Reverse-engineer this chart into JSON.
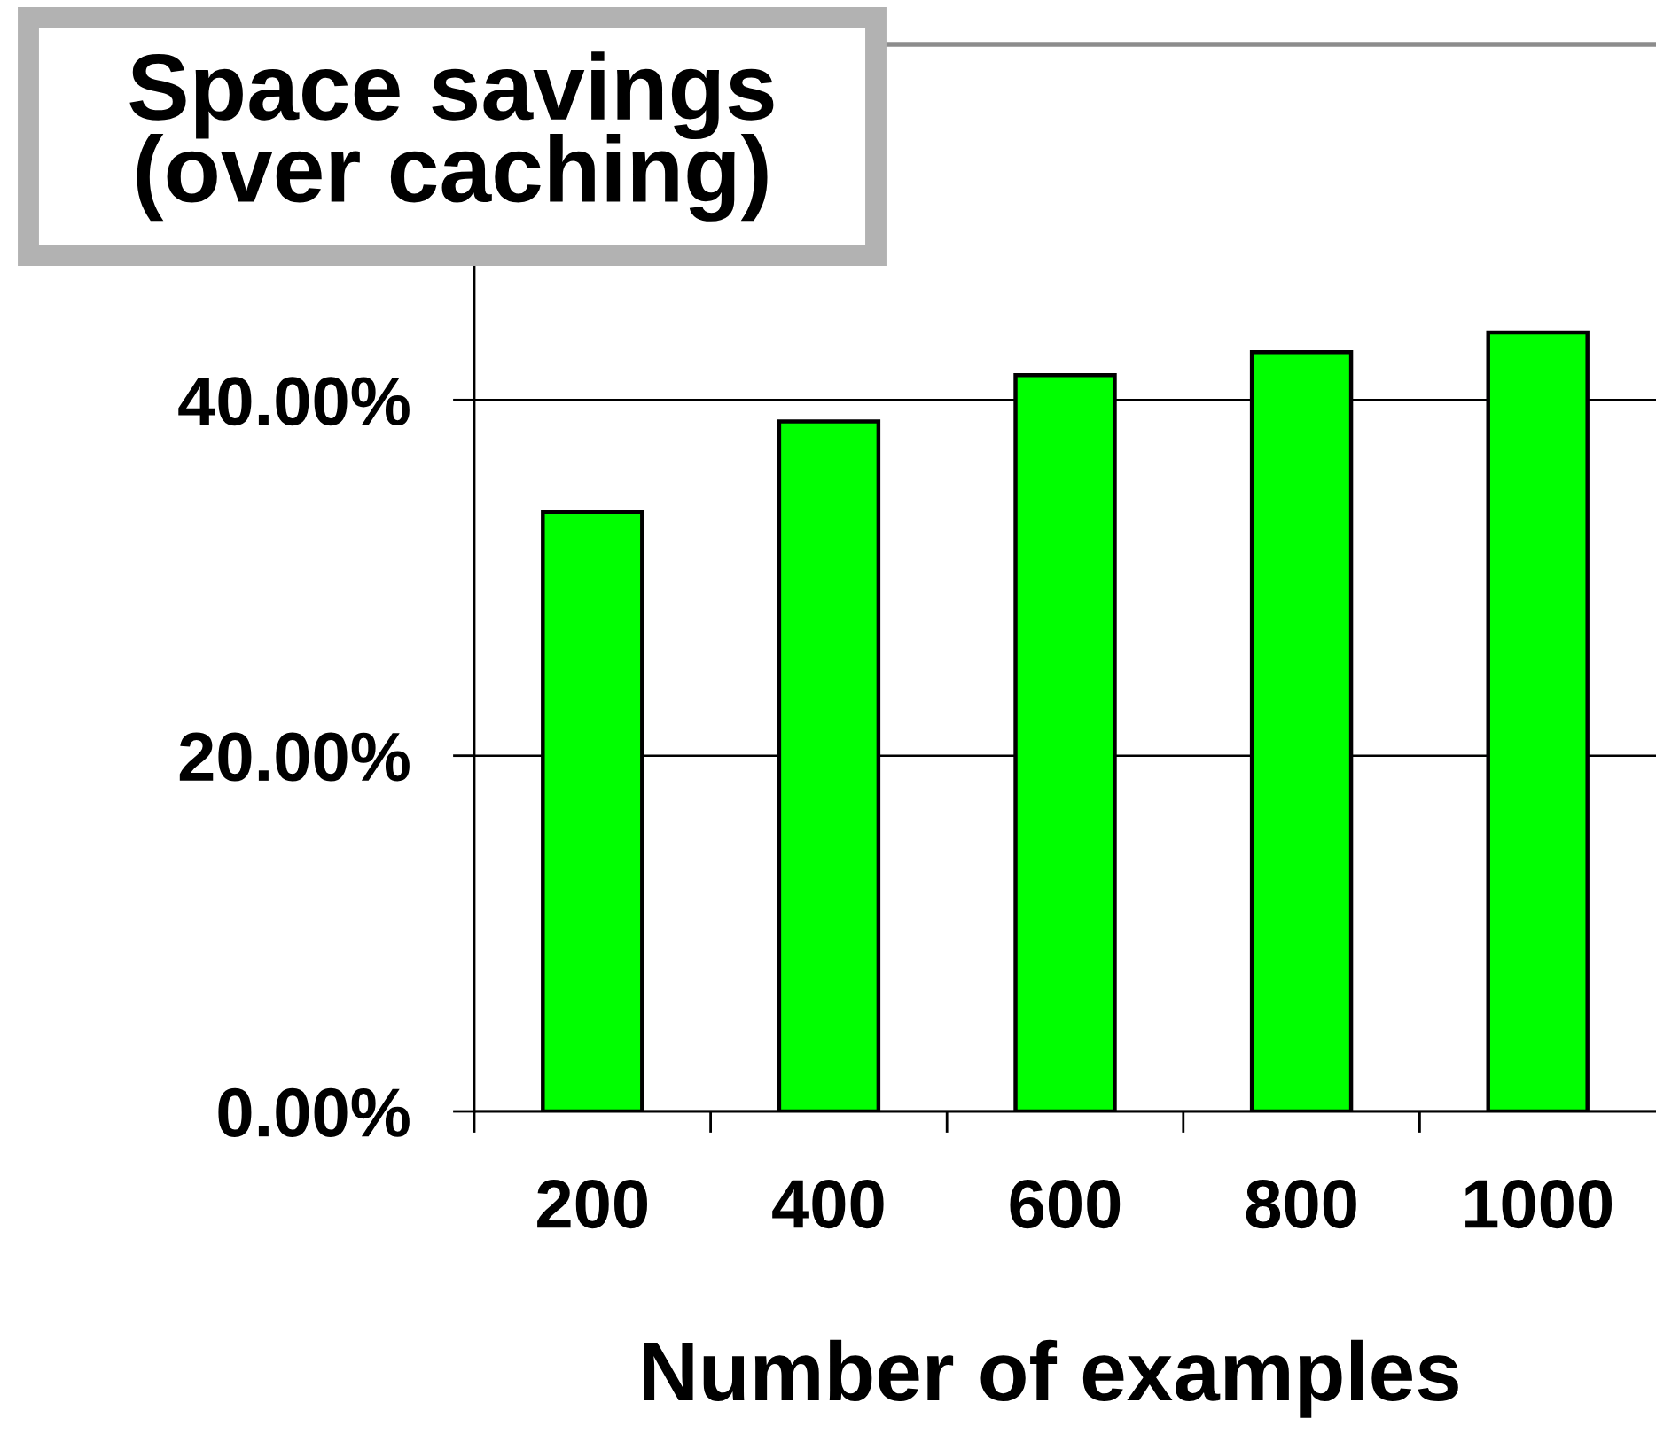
{
  "chart_data": {
    "type": "bar",
    "title": "Space savings\n(over caching)",
    "xlabel": "Number of examples",
    "categories": [
      "200",
      "400",
      "600",
      "800",
      "1000"
    ],
    "values": [
      33.7,
      38.8,
      41.4,
      42.7,
      43.8
    ],
    "color": "#00ff00",
    "ylim": [
      0,
      60
    ],
    "yticks": [
      {
        "value": 0,
        "label": "0.00%"
      },
      {
        "value": 20,
        "label": "20.00%"
      },
      {
        "value": 40,
        "label": "40.00%"
      }
    ],
    "grid": "y"
  }
}
